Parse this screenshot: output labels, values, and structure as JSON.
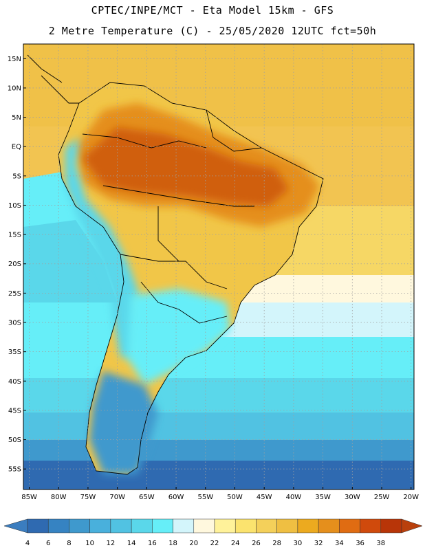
{
  "header": {
    "line1": "CPTEC/INPE/MCT -  Eta Model 15km - GFS",
    "line2": "2 Metre Temperature (C) - 25/05/2020 12UTC fct=50h"
  },
  "map": {
    "lat_ticks": [
      "15N",
      "10N",
      "5N",
      "EQ",
      "5S",
      "10S",
      "15S",
      "20S",
      "25S",
      "30S",
      "35S",
      "40S",
      "45S",
      "50S",
      "55S"
    ],
    "lon_ticks": [
      "85W",
      "80W",
      "75W",
      "70W",
      "65W",
      "60W",
      "55W",
      "50W",
      "45W",
      "40W",
      "35W",
      "30W",
      "25W",
      "20W"
    ],
    "lat_values": [
      15,
      10,
      5,
      0,
      -5,
      -10,
      -15,
      -20,
      -25,
      -30,
      -35,
      -40,
      -45,
      -50,
      -55
    ],
    "lon_values": [
      -85,
      -80,
      -75,
      -70,
      -65,
      -60,
      -55,
      -50,
      -45,
      -40,
      -35,
      -30,
      -25,
      -20
    ]
  },
  "legend": {
    "values": [
      "4",
      "6",
      "8",
      "10",
      "12",
      "14",
      "16",
      "18",
      "20",
      "22",
      "24",
      "26",
      "28",
      "30",
      "32",
      "34",
      "36",
      "38"
    ],
    "colors": [
      "#2f6ab1",
      "#3683c2",
      "#3f99cd",
      "#49b0dc",
      "#51c2e2",
      "#5ad7ea",
      "#66eef8",
      "#d3f5fb",
      "#fff8de",
      "#fff29a",
      "#fbe36e",
      "#f4d05a",
      "#efbf42",
      "#ecaa1f",
      "#e58f1c",
      "#e06c12",
      "#d04a0c",
      "#b83508"
    ],
    "low_color": "#3b7dbf",
    "high_color": "#b9400c"
  }
}
